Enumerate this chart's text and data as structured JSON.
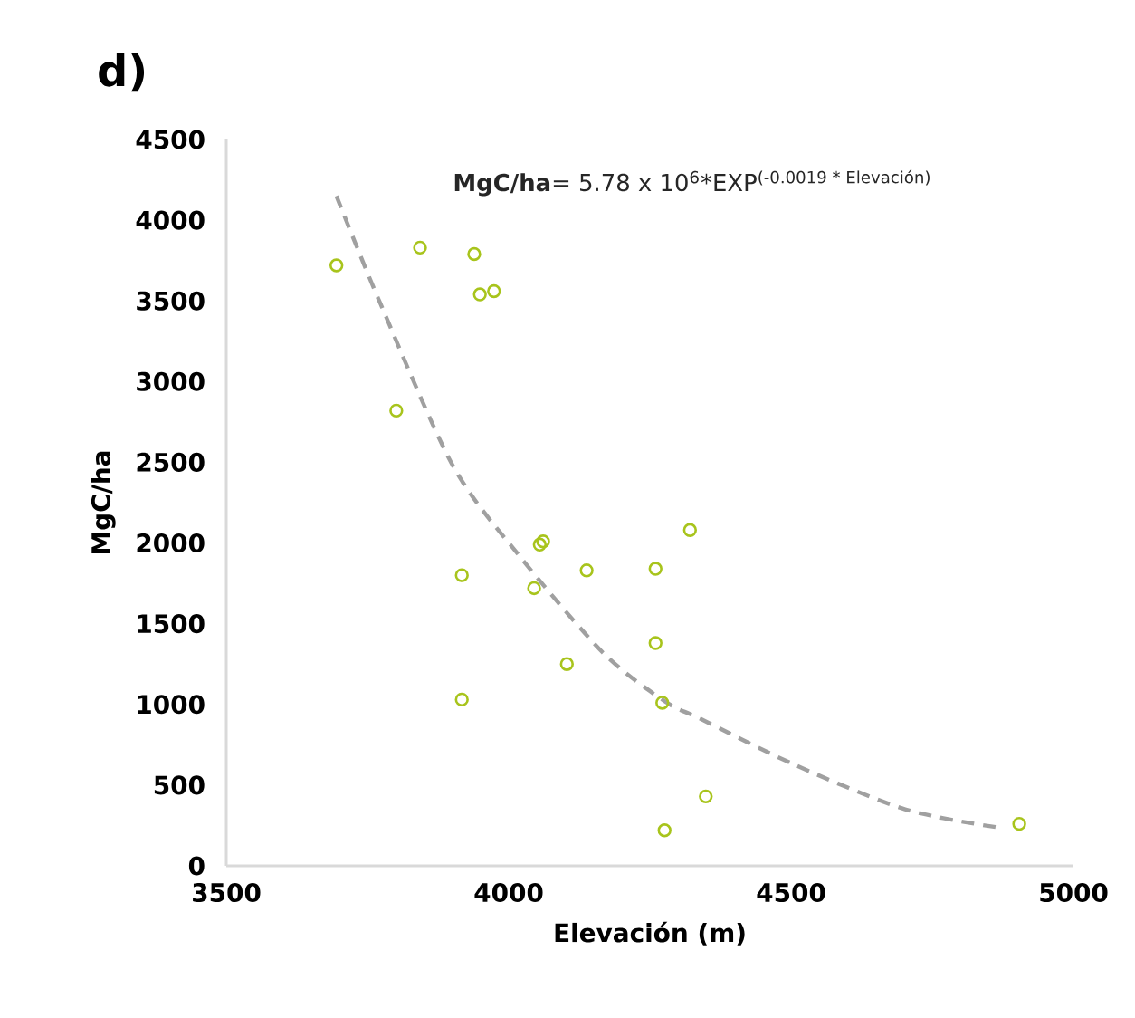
{
  "chart_data": {
    "type": "scatter",
    "title": "d)",
    "xlabel": "Elevación (m)",
    "ylabel": "MgC/ha",
    "annotations": [
      "**MgC/ha**= 5.78 x 10$^{6}$*EXP$^{(-0.0019 * Elevación)}$"
    ],
    "xlim": [
      3500,
      5000
    ],
    "xticks": [
      3500,
      4000,
      4500,
      5000
    ],
    "ylim": [
      0,
      4500
    ],
    "yticks": [
      0,
      500,
      1000,
      1500,
      2000,
      2500,
      3000,
      3500,
      4000,
      4500
    ],
    "grid": false,
    "series": [
      {
        "color": "#a8c41c",
        "marker": "circle",
        "x": [
          3695,
          3843,
          3939,
          3949,
          3974,
          3801,
          4061,
          4055,
          3917,
          4045,
          4138,
          4260,
          4321,
          4260,
          4103,
          3917,
          4272,
          4349,
          4276,
          4904
        ],
        "values": [
          3720,
          3830,
          3790,
          3540,
          3560,
          2820,
          2010,
          1990,
          1800,
          1720,
          1830,
          1840,
          2080,
          1380,
          1250,
          1030,
          1010,
          430,
          220,
          260
        ]
      },
      {
        "type": "line",
        "color": "#a0a0a0",
        "marker": "none",
        "line_style": "dashed",
        "x": [
          3695,
          3772,
          3901,
          4019,
          4167,
          4276,
          4340,
          4510,
          4702,
          4862
        ],
        "values": [
          4150,
          3490,
          2480,
          1920,
          1320,
          1020,
          910,
          620,
          350,
          240
        ]
      }
    ]
  }
}
